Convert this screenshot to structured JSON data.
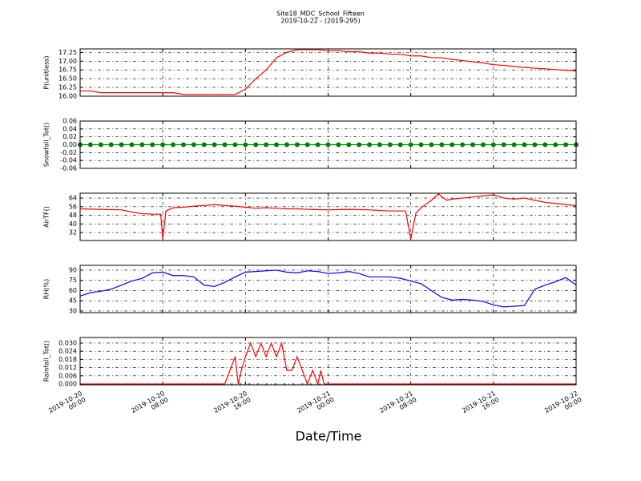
{
  "figure": {
    "title": "Site18_MDC_School_Fifteen",
    "subtitle": "2019-10-22 - (2019-295)",
    "xlabel": "Date/Time",
    "xlim": [
      "2019-10-20 00:00",
      "2019-10-22 00:00"
    ],
    "xticks": [
      {
        "value": "2019-10-20 00:00",
        "label": "2019-10-20\n00:00"
      },
      {
        "value": "2019-10-20 08:00",
        "label": "2019-10-20\n08:00"
      },
      {
        "value": "2019-10-20 16:00",
        "label": "2019-10-20\n16:00"
      },
      {
        "value": "2019-10-21 00:00",
        "label": "2019-10-21\n00:00"
      },
      {
        "value": "2019-10-21 08:00",
        "label": "2019-10-21\n08:00"
      },
      {
        "value": "2019-10-21 16:00",
        "label": "2019-10-21\n16:00"
      },
      {
        "value": "2019-10-22 00:00",
        "label": "2019-10-22\n00:00"
      }
    ]
  },
  "chart_data": [
    {
      "type": "line",
      "ylabel": "P(unitless)",
      "grid": true,
      "ylim": [
        16.0,
        17.35
      ],
      "yticks": [
        {
          "value": 16.0,
          "label": "16.00"
        },
        {
          "value": 16.25,
          "label": "16.25"
        },
        {
          "value": 16.5,
          "label": "16.50"
        },
        {
          "value": 16.75,
          "label": "16.75"
        },
        {
          "value": 17.0,
          "label": "17.00"
        },
        {
          "value": 17.25,
          "label": "17.25"
        }
      ],
      "x": [
        "2019-10-20 00:00",
        "2019-10-20 01:00",
        "2019-10-20 02:00",
        "2019-10-20 03:00",
        "2019-10-20 04:00",
        "2019-10-20 05:00",
        "2019-10-20 06:00",
        "2019-10-20 07:00",
        "2019-10-20 08:00",
        "2019-10-20 09:00",
        "2019-10-20 10:00",
        "2019-10-20 11:00",
        "2019-10-20 12:00",
        "2019-10-20 13:00",
        "2019-10-20 14:00",
        "2019-10-20 15:00",
        "2019-10-20 16:00",
        "2019-10-20 17:00",
        "2019-10-20 18:00",
        "2019-10-20 19:00",
        "2019-10-20 20:00",
        "2019-10-20 21:00",
        "2019-10-20 22:00",
        "2019-10-20 23:00",
        "2019-10-21 00:00",
        "2019-10-21 01:00",
        "2019-10-21 02:00",
        "2019-10-21 03:00",
        "2019-10-21 04:00",
        "2019-10-21 05:00",
        "2019-10-21 06:00",
        "2019-10-21 07:00",
        "2019-10-21 08:00",
        "2019-10-21 09:00",
        "2019-10-21 10:00",
        "2019-10-21 11:00",
        "2019-10-21 12:00",
        "2019-10-21 13:00",
        "2019-10-21 14:00",
        "2019-10-21 15:00",
        "2019-10-21 16:00",
        "2019-10-21 17:00",
        "2019-10-21 18:00",
        "2019-10-21 19:00",
        "2019-10-21 20:00",
        "2019-10-21 21:00",
        "2019-10-21 22:00",
        "2019-10-21 23:00",
        "2019-10-22 00:00"
      ],
      "series": [
        {
          "color": "#ff0000",
          "values": [
            16.15,
            16.15,
            16.1,
            16.1,
            16.1,
            16.1,
            16.1,
            16.1,
            16.1,
            16.1,
            16.05,
            16.05,
            16.05,
            16.05,
            16.05,
            16.05,
            16.2,
            16.5,
            16.75,
            17.1,
            17.25,
            17.33,
            17.33,
            17.33,
            17.3,
            17.3,
            17.27,
            17.27,
            17.23,
            17.23,
            17.2,
            17.2,
            17.15,
            17.15,
            17.1,
            17.1,
            17.05,
            17.02,
            16.98,
            16.95,
            16.9,
            16.88,
            16.85,
            16.82,
            16.8,
            16.78,
            16.76,
            16.74,
            16.72
          ]
        }
      ]
    },
    {
      "type": "line",
      "ylabel": "Snowfall_Tot()",
      "grid": true,
      "marker": "o",
      "ylim": [
        -0.06,
        0.06
      ],
      "yticks": [
        {
          "value": -0.06,
          "label": "-0.06"
        },
        {
          "value": -0.04,
          "label": "-0.04"
        },
        {
          "value": -0.02,
          "label": "-0.02"
        },
        {
          "value": 0,
          "label": "0.00"
        },
        {
          "value": 0.02,
          "label": "0.02"
        },
        {
          "value": 0.04,
          "label": "0.04"
        },
        {
          "value": 0.06,
          "label": "0.06"
        }
      ],
      "x": [
        "2019-10-20 00:00",
        "2019-10-20 01:00",
        "2019-10-20 02:00",
        "2019-10-20 03:00",
        "2019-10-20 04:00",
        "2019-10-20 05:00",
        "2019-10-20 06:00",
        "2019-10-20 07:00",
        "2019-10-20 08:00",
        "2019-10-20 09:00",
        "2019-10-20 10:00",
        "2019-10-20 11:00",
        "2019-10-20 12:00",
        "2019-10-20 13:00",
        "2019-10-20 14:00",
        "2019-10-20 15:00",
        "2019-10-20 16:00",
        "2019-10-20 17:00",
        "2019-10-20 18:00",
        "2019-10-20 19:00",
        "2019-10-20 20:00",
        "2019-10-20 21:00",
        "2019-10-20 22:00",
        "2019-10-20 23:00",
        "2019-10-21 00:00",
        "2019-10-21 01:00",
        "2019-10-21 02:00",
        "2019-10-21 03:00",
        "2019-10-21 04:00",
        "2019-10-21 05:00",
        "2019-10-21 06:00",
        "2019-10-21 07:00",
        "2019-10-21 08:00",
        "2019-10-21 09:00",
        "2019-10-21 10:00",
        "2019-10-21 11:00",
        "2019-10-21 12:00",
        "2019-10-21 13:00",
        "2019-10-21 14:00",
        "2019-10-21 15:00",
        "2019-10-21 16:00",
        "2019-10-21 17:00",
        "2019-10-21 18:00",
        "2019-10-21 19:00",
        "2019-10-21 20:00",
        "2019-10-21 21:00",
        "2019-10-21 22:00",
        "2019-10-21 23:00",
        "2019-10-22 00:00"
      ],
      "series": [
        {
          "color": "#008000",
          "values": [
            0,
            0,
            0,
            0,
            0,
            0,
            0,
            0,
            0,
            0,
            0,
            0,
            0,
            0,
            0,
            0,
            0,
            0,
            0,
            0,
            0,
            0,
            0,
            0,
            0,
            0,
            0,
            0,
            0,
            0,
            0,
            0,
            0,
            0,
            0,
            0,
            0,
            0,
            0,
            0,
            0,
            0,
            0,
            0,
            0,
            0,
            0,
            0,
            0
          ]
        }
      ]
    },
    {
      "type": "line",
      "ylabel": "AirTF()",
      "grid": true,
      "ylim": [
        24.6,
        68.5
      ],
      "yticks": [
        32,
        40,
        48,
        56,
        64
      ],
      "x": [
        "2019-10-20 00:00",
        "2019-10-20 04:00",
        "2019-10-20 05:00",
        "2019-10-20 06:00",
        "2019-10-20 07:00",
        "2019-10-20 07:48",
        "2019-10-20 08:00",
        "2019-10-20 08:18",
        "2019-10-20 09:00",
        "2019-10-20 10:00",
        "2019-10-20 11:00",
        "2019-10-20 12:00",
        "2019-10-20 13:00",
        "2019-10-20 14:00",
        "2019-10-20 15:00",
        "2019-10-20 16:00",
        "2019-10-20 17:00",
        "2019-10-20 18:00",
        "2019-10-20 19:00",
        "2019-10-20 20:00",
        "2019-10-20 21:00",
        "2019-10-20 22:00",
        "2019-10-21 00:00",
        "2019-10-21 02:00",
        "2019-10-21 04:00",
        "2019-10-21 06:00",
        "2019-10-21 07:30",
        "2019-10-21 08:00",
        "2019-10-21 08:30",
        "2019-10-21 09:00",
        "2019-10-21 10:00",
        "2019-10-21 10:42",
        "2019-10-21 11:00",
        "2019-10-21 11:30",
        "2019-10-21 12:00",
        "2019-10-21 13:00",
        "2019-10-21 14:00",
        "2019-10-21 15:00",
        "2019-10-21 16:00",
        "2019-10-21 17:00",
        "2019-10-21 18:00",
        "2019-10-21 19:00",
        "2019-10-21 20:00",
        "2019-10-21 21:00",
        "2019-10-21 22:00",
        "2019-10-21 23:00",
        "2019-10-22 00:00"
      ],
      "series": [
        {
          "color": "#ff0000",
          "values": [
            54,
            53,
            51,
            49.5,
            49,
            49,
            26,
            52,
            55,
            55.5,
            56.5,
            57,
            58,
            57,
            56.5,
            55.5,
            54.5,
            55,
            54.5,
            54,
            54,
            53.5,
            53,
            53.5,
            53,
            52,
            52,
            26,
            50,
            55,
            62,
            68,
            65,
            62,
            63,
            64,
            65,
            66,
            67,
            64,
            63,
            64,
            62,
            60,
            59,
            58,
            57
          ]
        }
      ]
    },
    {
      "type": "line",
      "ylabel": "RH(%)",
      "grid": true,
      "ylim": [
        27.6,
        97
      ],
      "yticks": [
        30,
        45,
        60,
        75,
        90
      ],
      "x": [
        "2019-10-20 00:00",
        "2019-10-20 01:00",
        "2019-10-20 02:00",
        "2019-10-20 03:00",
        "2019-10-20 04:00",
        "2019-10-20 05:00",
        "2019-10-20 06:00",
        "2019-10-20 07:00",
        "2019-10-20 08:00",
        "2019-10-20 09:00",
        "2019-10-20 10:00",
        "2019-10-20 11:00",
        "2019-10-20 12:00",
        "2019-10-20 13:00",
        "2019-10-20 14:00",
        "2019-10-20 15:00",
        "2019-10-20 16:00",
        "2019-10-20 17:00",
        "2019-10-20 18:00",
        "2019-10-20 19:00",
        "2019-10-20 20:00",
        "2019-10-20 21:00",
        "2019-10-20 22:00",
        "2019-10-20 23:00",
        "2019-10-21 00:00",
        "2019-10-21 01:00",
        "2019-10-21 02:00",
        "2019-10-21 03:00",
        "2019-10-21 04:00",
        "2019-10-21 05:00",
        "2019-10-21 06:00",
        "2019-10-21 07:00",
        "2019-10-21 08:00",
        "2019-10-21 09:00",
        "2019-10-21 10:00",
        "2019-10-21 11:00",
        "2019-10-21 12:00",
        "2019-10-21 13:00",
        "2019-10-21 14:00",
        "2019-10-21 15:00",
        "2019-10-21 16:00",
        "2019-10-21 17:00",
        "2019-10-21 18:00",
        "2019-10-21 19:00",
        "2019-10-21 20:00",
        "2019-10-21 21:00",
        "2019-10-21 22:00",
        "2019-10-21 23:00",
        "2019-10-22 00:00"
      ],
      "series": [
        {
          "color": "#0000ff",
          "values": [
            52,
            57,
            59,
            62,
            68,
            74,
            78,
            86,
            87,
            82,
            82,
            80,
            68,
            66,
            72,
            80,
            87,
            88,
            89,
            90,
            87,
            86,
            89,
            88,
            85,
            86,
            88,
            85,
            80,
            80,
            80,
            78,
            74,
            70,
            60,
            50,
            46,
            47,
            46,
            44,
            39,
            36,
            37,
            38,
            62,
            68,
            73,
            79,
            68
          ]
        }
      ]
    },
    {
      "type": "line",
      "ylabel": "Rainfall_Tot()",
      "grid": true,
      "ylim": [
        -0.0006,
        0.0341
      ],
      "yticks": [
        {
          "value": 0,
          "label": "0.000"
        },
        {
          "value": 0.006,
          "label": "0.006"
        },
        {
          "value": 0.012,
          "label": "0.012"
        },
        {
          "value": 0.018,
          "label": "0.018"
        },
        {
          "value": 0.024,
          "label": "0.024"
        },
        {
          "value": 0.03,
          "label": "0.030"
        }
      ],
      "x": [
        "2019-10-20 00:00",
        "2019-10-20 14:00",
        "2019-10-20 14:30",
        "2019-10-20 15:00",
        "2019-10-20 15:18",
        "2019-10-20 15:36",
        "2019-10-20 16:00",
        "2019-10-20 16:30",
        "2019-10-20 17:00",
        "2019-10-20 17:30",
        "2019-10-20 18:00",
        "2019-10-20 18:30",
        "2019-10-20 19:00",
        "2019-10-20 19:30",
        "2019-10-20 20:00",
        "2019-10-20 20:30",
        "2019-10-20 21:00",
        "2019-10-20 21:30",
        "2019-10-20 22:00",
        "2019-10-20 22:30",
        "2019-10-20 23:00",
        "2019-10-20 23:18",
        "2019-10-20 23:36",
        "2019-10-22 00:00"
      ],
      "series": [
        {
          "color": "#ff0000",
          "values": [
            0,
            0,
            0.01,
            0.02,
            0,
            0.01,
            0.02,
            0.03,
            0.02,
            0.03,
            0.02,
            0.03,
            0.02,
            0.03,
            0.01,
            0.01,
            0.02,
            0.01,
            0,
            0.01,
            0,
            0.01,
            0,
            0
          ]
        }
      ]
    }
  ]
}
